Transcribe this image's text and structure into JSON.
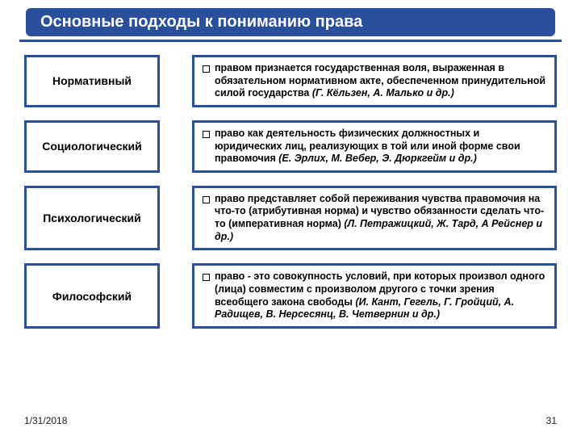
{
  "colors": {
    "title_bg": "#2a4f9c",
    "title_text": "#ffffff",
    "underline": "#2a4f9c",
    "box_border": "#2a4f9c",
    "background": "#ffffff"
  },
  "title": "Основные подходы к пониманию права",
  "approaches": [
    {
      "label": "Нормативный",
      "desc": "правом признается государственная воля, выраженная в обязательном нормативном акте, обеспеченном принудительной силой государства ",
      "authors": "(Г. Кёльзен, А. Малько и др.)"
    },
    {
      "label": "Социологический",
      "desc": "право как деятельность физических должностных и юридических лиц, реализующих в той или иной форме свои правомочия ",
      "authors": "(Е. Эрлих, М. Вебер, Э. Дюркгейм и др.)"
    },
    {
      "label": "Психологический",
      "desc": "право представляет собой переживания чувства правомочия на что-то (атрибутивная норма) и чувство обязанности сделать что-то (императивная норма) ",
      "authors": "(Л. Петражицкий, Ж. Тард, А Рейснер и др.)"
    },
    {
      "label": "Философский",
      "desc": "право - это совокупность условий, при которых произвол одного (лица) совместим с произволом другого с точки зрения всеобщего закона свободы ",
      "authors": "(И. Кант, Гегель, Г. Гройций, А. Радищев, В. Нерсесянц, В. Четвернин и др.)"
    }
  ],
  "footer": {
    "date": "1/31/2018",
    "page": "31"
  },
  "layout": {
    "slide_w": 720,
    "slide_h": 540,
    "label_box_w": 168,
    "row_gap": 16,
    "font_title": 20,
    "font_label": 14,
    "font_desc": 12.5,
    "font_footer": 12,
    "box_border_w": 3
  }
}
